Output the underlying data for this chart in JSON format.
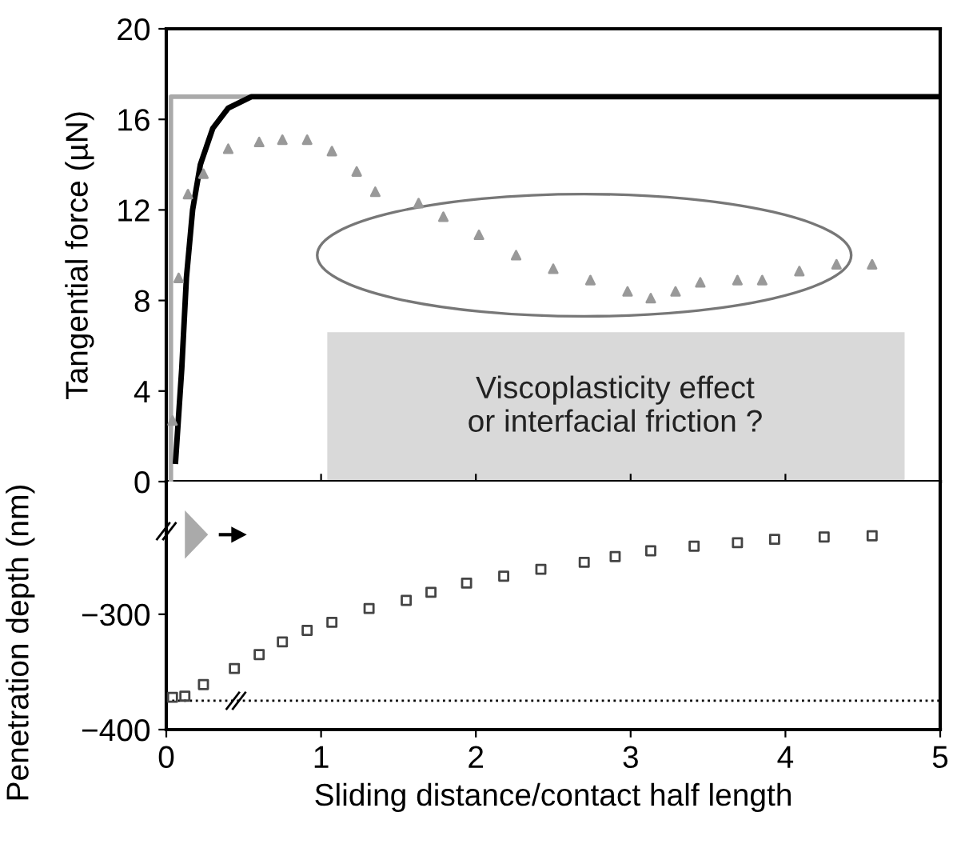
{
  "chart_data": [
    {
      "type": "line",
      "ylabel": "Tangential force (µN)",
      "xlim": [
        0,
        5
      ],
      "xticks": [
        0,
        1,
        2,
        3,
        4,
        5
      ],
      "ylim": [
        0,
        20
      ],
      "yticks": [
        0,
        4,
        8,
        12,
        16,
        20
      ],
      "tick_labels": "y",
      "grid": false,
      "legend": false,
      "annotations": [
        "Viscoplasticity effect\nor interfacial friction ?"
      ],
      "series": [
        {
          "color": "#aaaaaa",
          "marker": "none",
          "x": [
            0.03,
            0.03,
            0.6
          ],
          "values": [
            0,
            17,
            17
          ]
        },
        {
          "color": "#000000",
          "marker": "none",
          "x": [
            0.06,
            0.1,
            0.13,
            0.17,
            0.22,
            0.3,
            0.4,
            0.55,
            5
          ],
          "values": [
            0.9,
            5,
            9,
            12,
            14,
            15.6,
            16.5,
            17,
            17
          ]
        },
        {
          "type": "scatter",
          "color": "#999999",
          "marker": "triangle",
          "x": [
            0.04,
            0.08,
            0.14,
            0.24,
            0.4,
            0.6,
            0.75,
            0.91,
            1.07,
            1.23,
            1.35,
            1.63,
            1.79,
            2.02,
            2.26,
            2.5,
            2.74,
            2.98,
            3.13,
            3.29,
            3.45,
            3.69,
            3.85,
            4.09,
            4.33,
            4.56
          ],
          "values": [
            2.7,
            9.0,
            12.7,
            13.6,
            14.7,
            15.0,
            15.1,
            15.1,
            14.6,
            13.7,
            12.8,
            12.3,
            11.7,
            10.9,
            10.0,
            9.4,
            8.9,
            8.4,
            8.1,
            8.4,
            8.8,
            8.9,
            8.9,
            9.3,
            9.6,
            9.6
          ]
        }
      ]
    },
    {
      "type": "scatter",
      "xlabel": "Sliding distance/contact half length",
      "ylabel": "Penetration depth (nm)",
      "xlim": [
        0,
        5
      ],
      "xticks": [
        0,
        1,
        2,
        3,
        4,
        5
      ],
      "ylim": [
        -400,
        -185
      ],
      "yticks": [
        {
          "value": -400,
          "label": "−400"
        },
        {
          "value": -300,
          "label": "−300"
        }
      ],
      "grid": false,
      "legend": false,
      "ref_lines": [
        {
          "axis": "y",
          "value": -375,
          "color": "#000000",
          "line_style": "dotted"
        }
      ],
      "series": [
        {
          "color": "#444444",
          "marker": "square",
          "x": [
            0.04,
            0.12,
            0.24,
            0.44,
            0.6,
            0.75,
            0.91,
            1.07,
            1.31,
            1.55,
            1.71,
            1.94,
            2.18,
            2.42,
            2.7,
            2.9,
            3.13,
            3.41,
            3.69,
            3.93,
            4.25,
            4.56
          ],
          "values": [
            -372,
            -371,
            -361,
            -347,
            -335,
            -324,
            -314,
            -307,
            -295,
            -288,
            -281,
            -273,
            -267,
            -261,
            -255,
            -250,
            -245,
            -241,
            -238,
            -235,
            -233,
            -232
          ]
        }
      ]
    }
  ]
}
